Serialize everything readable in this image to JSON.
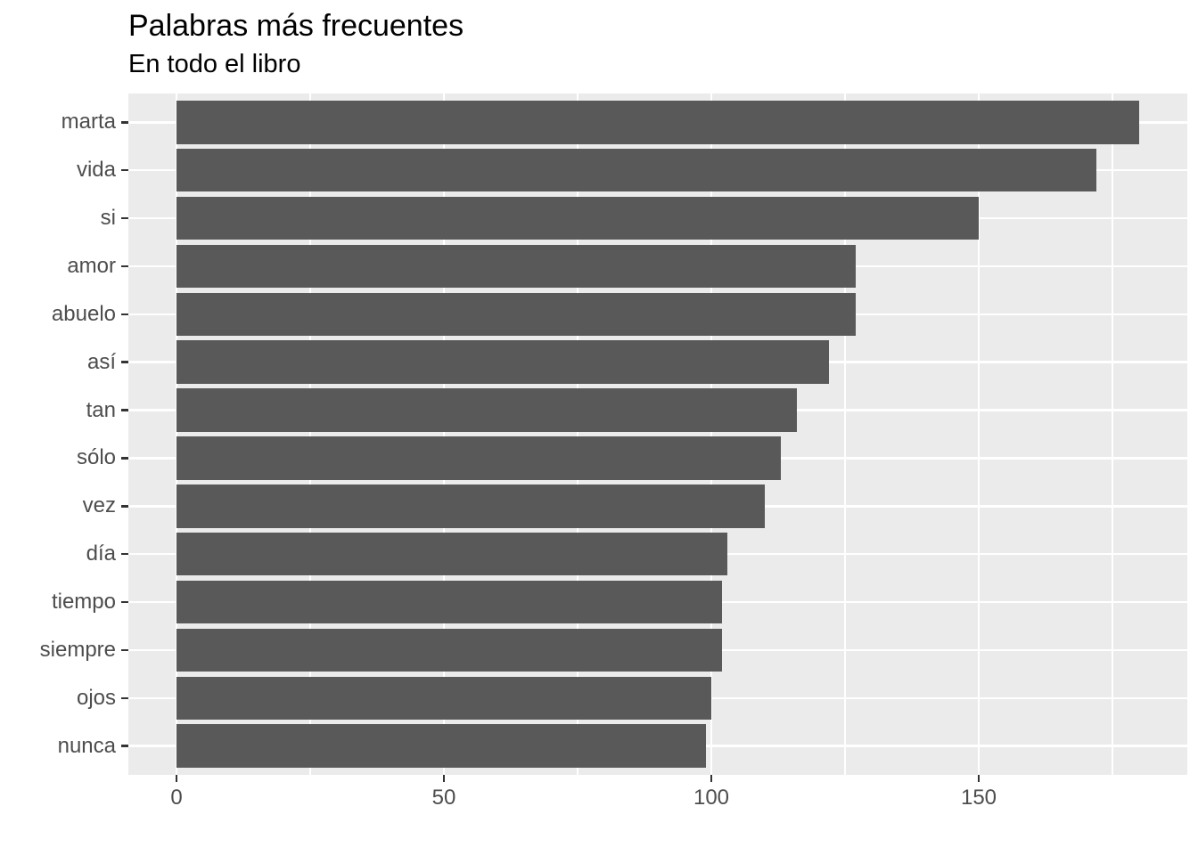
{
  "figure": {
    "title": "Palabras más frecuentes",
    "subtitle": "En todo el libro"
  },
  "colors": {
    "background": "#FFFFFF",
    "panel_bg": "#EBEBEB",
    "grid": "#FFFFFF",
    "bar_fill": "#595959",
    "axis_text": "#4D4D4D",
    "tick_mark": "#333333",
    "title_text": "#000000"
  },
  "chart_data": {
    "type": "bar",
    "orientation": "horizontal",
    "title": "Palabras más frecuentes",
    "subtitle": "En todo el libro",
    "categories": [
      "marta",
      "vida",
      "si",
      "amor",
      "abuelo",
      "así",
      "tan",
      "sólo",
      "vez",
      "día",
      "tiempo",
      "siempre",
      "ojos",
      "nunca"
    ],
    "values": [
      180,
      172,
      150,
      127,
      127,
      122,
      116,
      113,
      110,
      103,
      102,
      102,
      100,
      99
    ],
    "xlabel": "",
    "ylabel": "",
    "xlim": [
      -9,
      189
    ],
    "x_major_ticks": [
      0,
      50,
      100,
      150
    ],
    "x_tick_labels": [
      "0",
      "50",
      "100",
      "150"
    ],
    "x_minor_gridlines": [
      25,
      75,
      125,
      175
    ],
    "bar_width_fraction": 0.9,
    "grid": true,
    "legend": false,
    "style": "ggplot2 theme_gray"
  }
}
